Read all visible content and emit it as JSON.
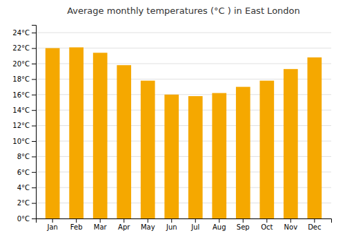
{
  "chart_data": {
    "type": "bar",
    "title": "Average monthly temperatures (°C ) in East London",
    "categories": [
      "Jan",
      "Feb",
      "Mar",
      "Apr",
      "May",
      "Jun",
      "Jul",
      "Aug",
      "Sep",
      "Oct",
      "Nov",
      "Dec"
    ],
    "values": [
      22.0,
      22.1,
      21.4,
      19.8,
      17.8,
      16.0,
      15.8,
      16.2,
      17.0,
      17.8,
      19.3,
      20.8
    ],
    "color": "#F5A800",
    "ylim": [
      0,
      25
    ],
    "yticks": [
      {
        "value": 0,
        "label": "0°C"
      },
      {
        "value": 2,
        "label": "2°C"
      },
      {
        "value": 4,
        "label": "4°C"
      },
      {
        "value": 6,
        "label": "6°C"
      },
      {
        "value": 8,
        "label": "8°C"
      },
      {
        "value": 10,
        "label": "10°C"
      },
      {
        "value": 12,
        "label": "12°C"
      },
      {
        "value": 14,
        "label": "14°C"
      },
      {
        "value": 16,
        "label": "16°C"
      },
      {
        "value": 18,
        "label": "18°C"
      },
      {
        "value": 20,
        "label": "20°C"
      },
      {
        "value": 22,
        "label": "22°C"
      },
      {
        "value": 24,
        "label": "24°C"
      }
    ],
    "grid": true
  }
}
